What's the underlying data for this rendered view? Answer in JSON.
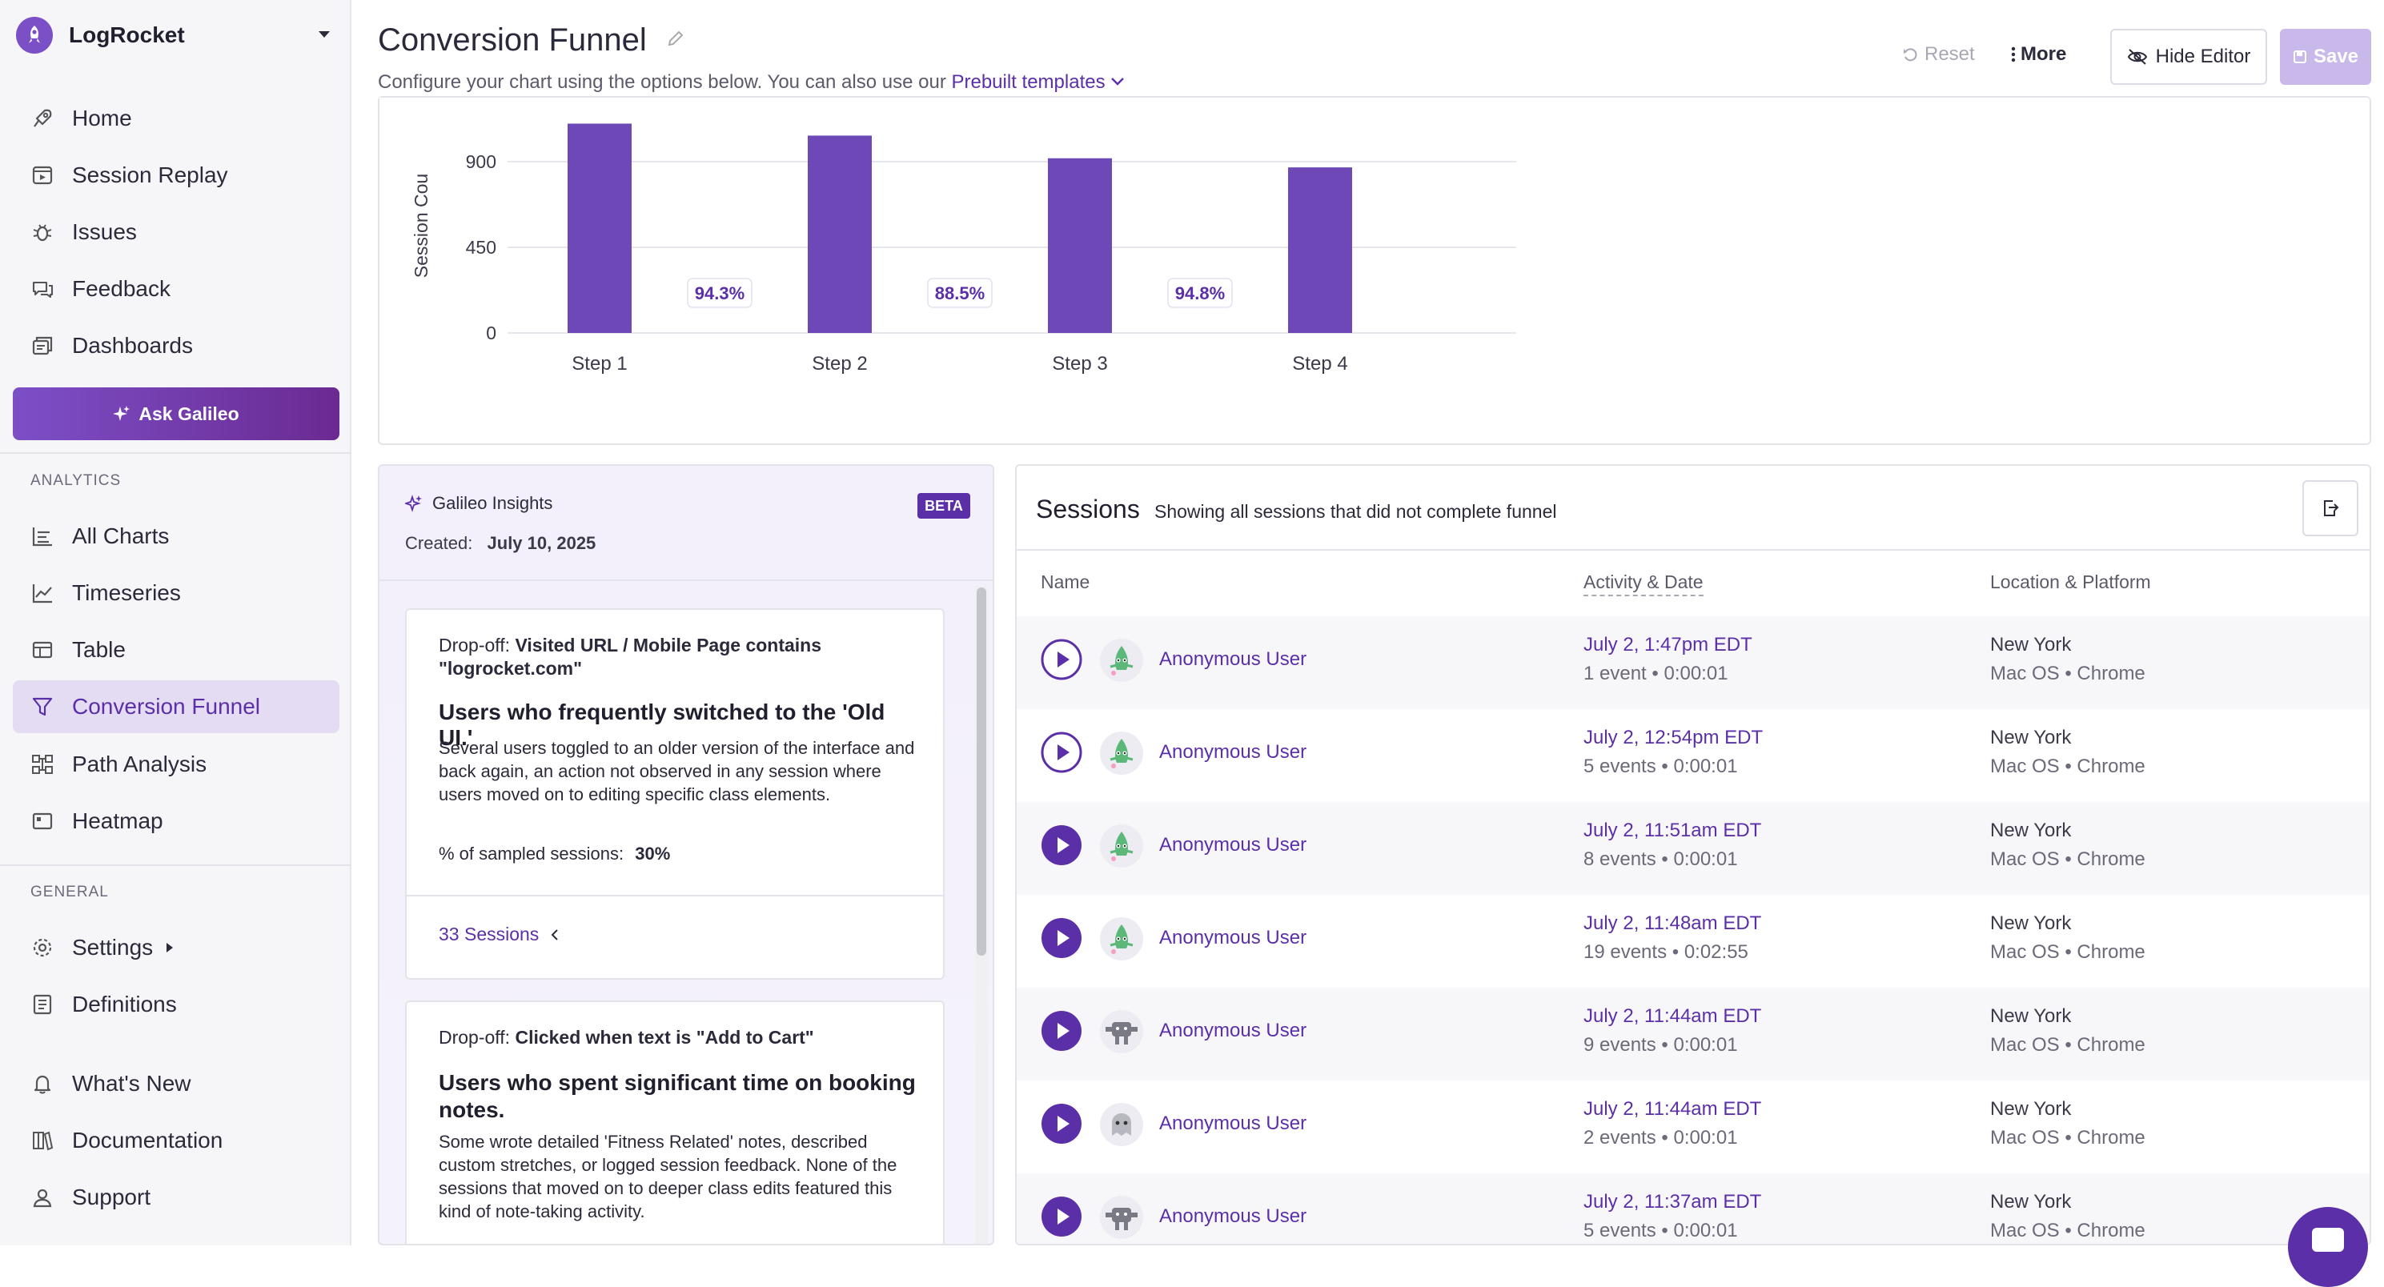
{
  "sidebar": {
    "org_name": "LogRocket",
    "nav_main": [
      {
        "label": "Home",
        "icon": "rocket-icon"
      },
      {
        "label": "Session Replay",
        "icon": "session-replay-icon"
      },
      {
        "label": "Issues",
        "icon": "bug-icon"
      },
      {
        "label": "Feedback",
        "icon": "feedback-icon"
      },
      {
        "label": "Dashboards",
        "icon": "dashboards-icon"
      }
    ],
    "ask_button": "Ask Galileo",
    "analytics_label": "ANALYTICS",
    "nav_analytics": [
      {
        "label": "All Charts",
        "icon": "all-charts-icon"
      },
      {
        "label": "Timeseries",
        "icon": "timeseries-icon"
      },
      {
        "label": "Table",
        "icon": "table-icon"
      },
      {
        "label": "Conversion Funnel",
        "icon": "funnel-icon"
      },
      {
        "label": "Path Analysis",
        "icon": "path-analysis-icon"
      },
      {
        "label": "Heatmap",
        "icon": "heatmap-icon"
      }
    ],
    "general_label": "GENERAL",
    "nav_general": [
      {
        "label": "Settings",
        "icon": "gear-icon"
      },
      {
        "label": "Definitions",
        "icon": "definitions-icon"
      }
    ],
    "nav_bottom": [
      {
        "label": "What's New",
        "icon": "bell-icon"
      },
      {
        "label": "Documentation",
        "icon": "documentation-icon"
      },
      {
        "label": "Support",
        "icon": "support-icon"
      }
    ]
  },
  "header": {
    "title": "Conversion Funnel",
    "subtitle": "Configure your chart using the options below. You can also use our",
    "templates_link": "Prebuilt templates",
    "reset": "Reset",
    "more": "More",
    "hide_editor": "Hide Editor",
    "save": "Save"
  },
  "chart_data": {
    "type": "bar",
    "ylabel": "Session Cou",
    "y_ticks": [
      0,
      450,
      900
    ],
    "categories": [
      "Step 1",
      "Step 2",
      "Step 3",
      "Step 4"
    ],
    "values": [
      1100,
      1037,
      918,
      870
    ],
    "conversion_labels": [
      "94.3%",
      "88.5%",
      "94.8%"
    ],
    "colors": {
      "bar": "#6f48b8",
      "grid": "#e6e6ee",
      "label": "#5b2fa8"
    }
  },
  "insights": {
    "title": "Galileo Insights",
    "badge": "BETA",
    "created_label": "Created:",
    "created_date": "July 10, 2025",
    "cards": [
      {
        "dropoff_label": "Drop-off:",
        "dropoff_value": "Visited URL / Mobile Page contains \"logrocket.com\"",
        "heading": "Users who frequently switched to the 'Old UI.'",
        "body": "Several users toggled to an older version of the interface and back again, an action not observed in any session where users moved on to editing specific class elements.",
        "pct_label": "% of sampled sessions:",
        "pct_value": "30%",
        "sessions_link": "33 Sessions"
      },
      {
        "dropoff_label": "Drop-off:",
        "dropoff_value": "Clicked when text is \"Add to Cart\"",
        "heading": "Users who spent significant time on booking notes.",
        "body": "Some wrote detailed 'Fitness Related' notes, described custom stretches, or logged session feedback. None of the sessions that moved on to deeper class edits featured this kind of note-taking activity."
      }
    ]
  },
  "sessions": {
    "title": "Sessions",
    "subtitle": "Showing all sessions that did not complete funnel",
    "columns": [
      "Name",
      "Activity & Date",
      "Location & Platform"
    ],
    "rows": [
      {
        "name": "Anonymous User",
        "avatar": "green-creature-icon",
        "date": "July 2, 1:47pm EDT",
        "activity": "1 event • 0:00:01",
        "location": "New York",
        "platform": "Mac OS • Chrome"
      },
      {
        "name": "Anonymous User",
        "avatar": "green-creature-icon",
        "date": "July 2, 12:54pm EDT",
        "activity": "5 events • 0:00:01",
        "location": "New York",
        "platform": "Mac OS • Chrome"
      },
      {
        "name": "Anonymous User",
        "avatar": "green-creature-icon",
        "date": "July 2, 11:51am EDT",
        "activity": "8 events • 0:00:01",
        "location": "New York",
        "platform": "Mac OS • Chrome"
      },
      {
        "name": "Anonymous User",
        "avatar": "green-creature-icon",
        "date": "July 2, 11:48am EDT",
        "activity": "19 events • 0:02:55",
        "location": "New York",
        "platform": "Mac OS • Chrome"
      },
      {
        "name": "Anonymous User",
        "avatar": "gray-robot-icon",
        "date": "July 2, 11:44am EDT",
        "activity": "9 events • 0:00:01",
        "location": "New York",
        "platform": "Mac OS • Chrome"
      },
      {
        "name": "Anonymous User",
        "avatar": "gray-ghost-icon",
        "date": "July 2, 11:44am EDT",
        "activity": "2 events • 0:00:01",
        "location": "New York",
        "platform": "Mac OS • Chrome"
      },
      {
        "name": "Anonymous User",
        "avatar": "gray-robot-icon",
        "date": "July 2, 11:37am EDT",
        "activity": "5 events • 0:00:01",
        "location": "New York",
        "platform": "Mac OS • Chrome"
      }
    ]
  }
}
